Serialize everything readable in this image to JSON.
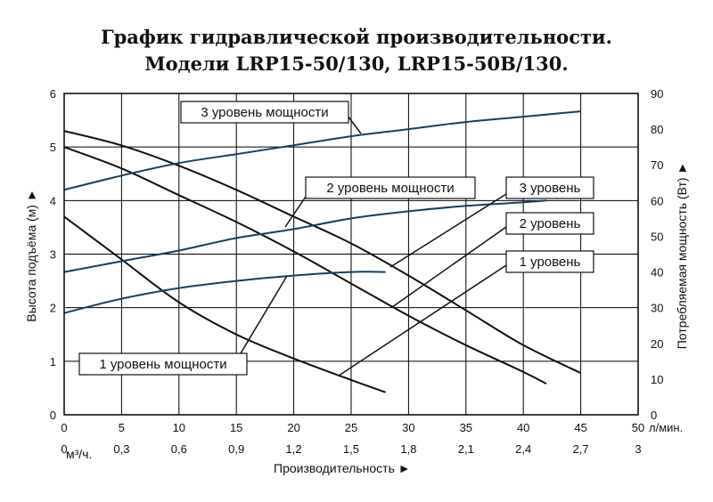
{
  "title_line1": "График гидравлической производительности.",
  "title_line2": "Модели LRP15-50/130, LRP15-50B/130.",
  "chart_data": {
    "type": "line",
    "xlabel": "Производительность ►",
    "ylabel_left": "Высота подъёма (м) ►",
    "ylabel_right": "Потребляемая мощность (Вт) ►",
    "x_unit": "л/мин.",
    "x2_unit": "м³/ч.",
    "xlim": [
      0,
      50
    ],
    "ylim_left": [
      0,
      6
    ],
    "ylim_right": [
      0,
      90
    ],
    "x_ticks": [
      "0",
      "5",
      "10",
      "15",
      "20",
      "25",
      "30",
      "35",
      "40",
      "45",
      "50"
    ],
    "x2_ticks": [
      "0",
      "0,3",
      "0,6",
      "0,9",
      "1,2",
      "1,5",
      "1,8",
      "2,1",
      "2,4",
      "2,7",
      "3"
    ],
    "y_left_ticks": [
      "0",
      "1",
      "2",
      "3",
      "4",
      "5",
      "6"
    ],
    "y_right_ticks": [
      "0",
      "10",
      "20",
      "30",
      "40",
      "50",
      "60",
      "70",
      "80",
      "90"
    ],
    "grid": true,
    "head_curves": [
      {
        "name": "3 уровень",
        "x": [
          0,
          5,
          10,
          15,
          20,
          25,
          30,
          35,
          40,
          45
        ],
        "y": [
          5.3,
          5.03,
          4.65,
          4.2,
          3.7,
          3.2,
          2.6,
          1.95,
          1.3,
          0.78
        ]
      },
      {
        "name": "2 уровень",
        "x": [
          0,
          5,
          10,
          15,
          20,
          25,
          30,
          35,
          40,
          42
        ],
        "y": [
          5.0,
          4.6,
          4.1,
          3.6,
          3.05,
          2.45,
          1.85,
          1.3,
          0.8,
          0.58
        ]
      },
      {
        "name": "1 уровень",
        "x": [
          0,
          5,
          10,
          15,
          20,
          25,
          28
        ],
        "y": [
          3.7,
          2.9,
          2.1,
          1.5,
          1.05,
          0.65,
          0.42
        ]
      }
    ],
    "power_curves": [
      {
        "name": "3 уровень мощности",
        "x": [
          0,
          5,
          10,
          15,
          20,
          25,
          30,
          35,
          40,
          45
        ],
        "y": [
          63,
          67,
          70.5,
          73,
          75.5,
          78,
          80,
          82,
          83.5,
          85
        ]
      },
      {
        "name": "2 уровень мощности",
        "x": [
          0,
          5,
          10,
          15,
          20,
          25,
          30,
          35,
          40,
          42
        ],
        "y": [
          40,
          43,
          46,
          49.5,
          52,
          55,
          57,
          58.5,
          59.5,
          60
        ]
      },
      {
        "name": "1 уровень мощности",
        "x": [
          0,
          5,
          10,
          15,
          20,
          25,
          28
        ],
        "y": [
          28.5,
          32.5,
          35.5,
          37.5,
          39,
          40,
          40
        ]
      }
    ],
    "annotations": [
      "3 уровень мощности",
      "2 уровень мощности",
      "1 уровень мощности",
      "3 уровень",
      "2 уровень",
      "1 уровень"
    ]
  }
}
